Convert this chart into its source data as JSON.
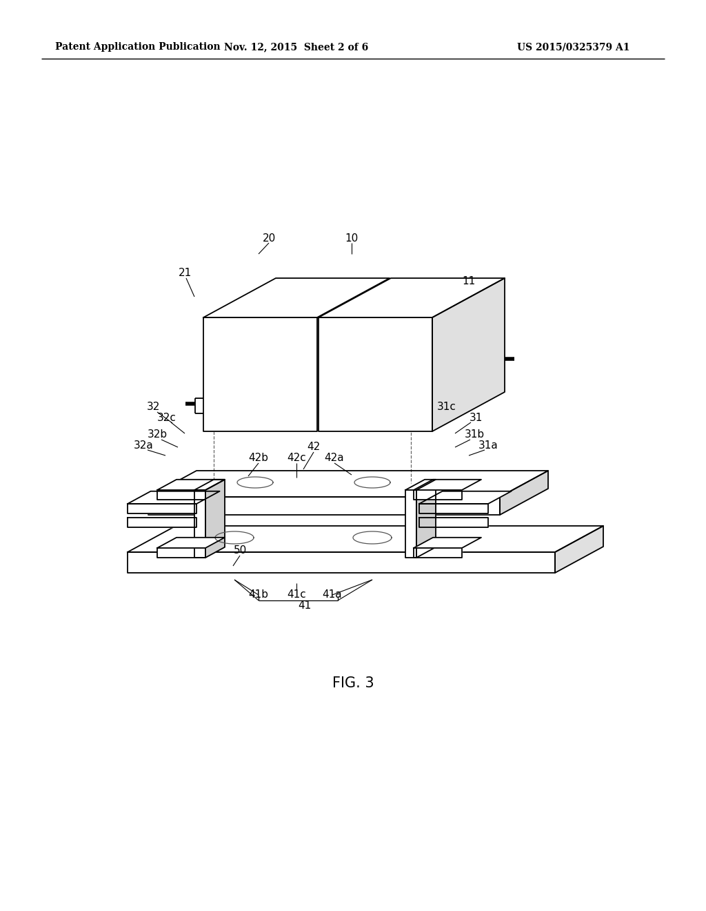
{
  "bg_color": "#ffffff",
  "line_color": "#000000",
  "header_left": "Patent Application Publication",
  "header_mid": "Nov. 12, 2015  Sheet 2 of 6",
  "header_right": "US 2015/0325379 A1",
  "fig_label": "FIG. 3"
}
